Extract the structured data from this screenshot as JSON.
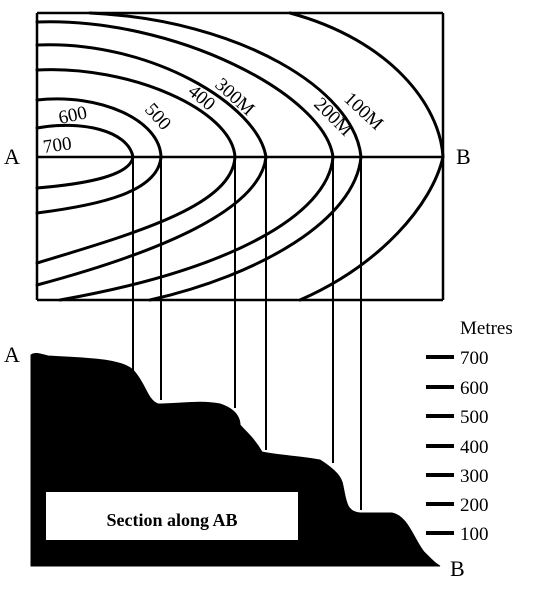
{
  "figure": {
    "section_caption": "Section along AB",
    "point_a_map": "A",
    "point_b_map": "B",
    "point_a_section": "A",
    "point_b_section": "B",
    "scale_unit": "Metres"
  },
  "contours": [
    {
      "label": "700",
      "height": 700
    },
    {
      "label": "600",
      "height": 600
    },
    {
      "label": "500",
      "height": 500
    },
    {
      "label": "400",
      "height": 400
    },
    {
      "label": "300M",
      "height": 300
    },
    {
      "label": "200M",
      "height": 200
    },
    {
      "label": "100M",
      "height": 100
    }
  ],
  "scale_ticks": [
    "700",
    "600",
    "500",
    "400",
    "300",
    "200",
    "100"
  ],
  "colors": {
    "ink": "#000000",
    "paper": "#ffffff"
  }
}
